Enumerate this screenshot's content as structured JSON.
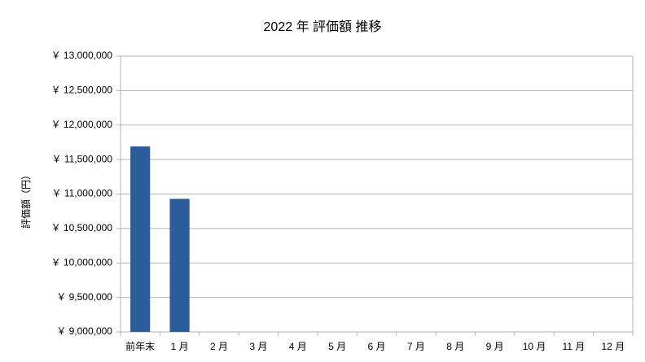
{
  "chart_data": {
    "type": "bar",
    "title": "2022 年 評価額 推移",
    "y_label": "評価額（円）",
    "categories": [
      "前年末",
      "1 月",
      "2 月",
      "3 月",
      "4 月",
      "5 月",
      "6 月",
      "7 月",
      "8 月",
      "9 月",
      "10 月",
      "11 月",
      "12 月"
    ],
    "values": [
      11690000,
      10930000,
      null,
      null,
      null,
      null,
      null,
      null,
      null,
      null,
      null,
      null,
      null
    ],
    "color": "#2b5d9a",
    "ylim": [
      9000000,
      13000000
    ],
    "yticks": [
      {
        "value": 9000000,
        "label": "￥ 9,000,000"
      },
      {
        "value": 9500000,
        "label": "￥ 9,500,000"
      },
      {
        "value": 10000000,
        "label": "￥ 10,000,000"
      },
      {
        "value": 10500000,
        "label": "￥ 10,500,000"
      },
      {
        "value": 11000000,
        "label": "￥ 11,000,000"
      },
      {
        "value": 11500000,
        "label": "￥ 11,500,000"
      },
      {
        "value": 12000000,
        "label": "￥ 12,000,000"
      },
      {
        "value": 12500000,
        "label": "￥ 12,500,000"
      },
      {
        "value": 13000000,
        "label": "￥ 13,000,000"
      }
    ],
    "grid": true
  }
}
